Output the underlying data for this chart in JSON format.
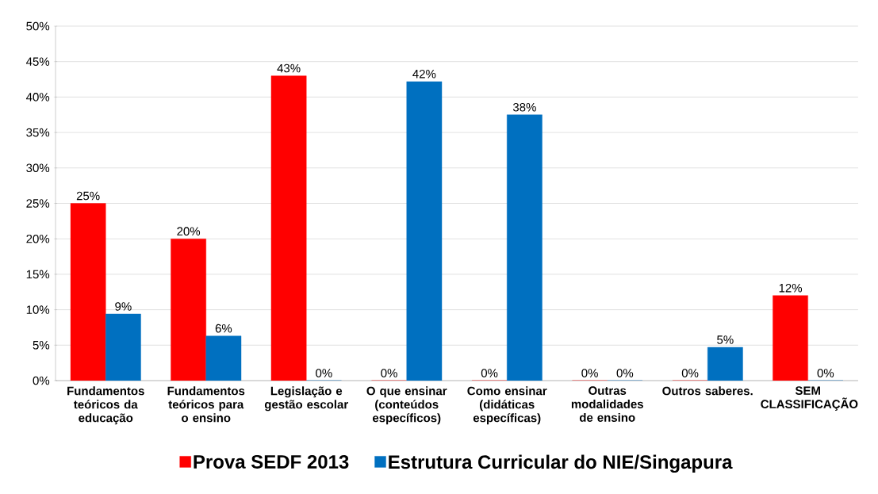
{
  "chart_data": {
    "type": "bar",
    "categories": [
      "Fundamentos teóricos da educação",
      "Fundamentos teóricos para o ensino",
      "Legislação e gestão escolar",
      "O que ensinar (conteúdos específicos)",
      "Como ensinar (didáticas específicas)",
      "Outras modalidades de ensino",
      "Outros saberes.",
      "SEM CLASSIFICAÇÃO"
    ],
    "series": [
      {
        "name": "Prova SEDF 2013",
        "color": "#ff0000",
        "values": [
          25,
          20,
          43,
          0,
          0,
          0,
          0,
          12
        ],
        "value_labels": [
          "25%",
          "20%",
          "43%",
          "0%",
          "0%",
          "0%",
          "0%",
          "12%"
        ]
      },
      {
        "name": "Estrutura Curricular do NIE/Singapura",
        "color": "#0070c0",
        "values": [
          9.4,
          6.3,
          0,
          42.2,
          37.5,
          0,
          4.7,
          0
        ],
        "value_labels": [
          "9%",
          "6%",
          "0%",
          "42%",
          "38%",
          "0%",
          "5%",
          "0%"
        ]
      }
    ],
    "ylim": [
      0,
      50
    ],
    "yticks": [
      {
        "value": 0,
        "label": "0%"
      },
      {
        "value": 5,
        "label": "5%"
      },
      {
        "value": 10,
        "label": "10%"
      },
      {
        "value": 15,
        "label": "15%"
      },
      {
        "value": 20,
        "label": "20%"
      },
      {
        "value": 25,
        "label": "25%"
      },
      {
        "value": 30,
        "label": "30%"
      },
      {
        "value": 35,
        "label": "35%"
      },
      {
        "value": 40,
        "label": "40%"
      },
      {
        "value": 45,
        "label": "45%"
      },
      {
        "value": 50,
        "label": "50%"
      }
    ],
    "grid": "y",
    "legend": "bottom"
  }
}
